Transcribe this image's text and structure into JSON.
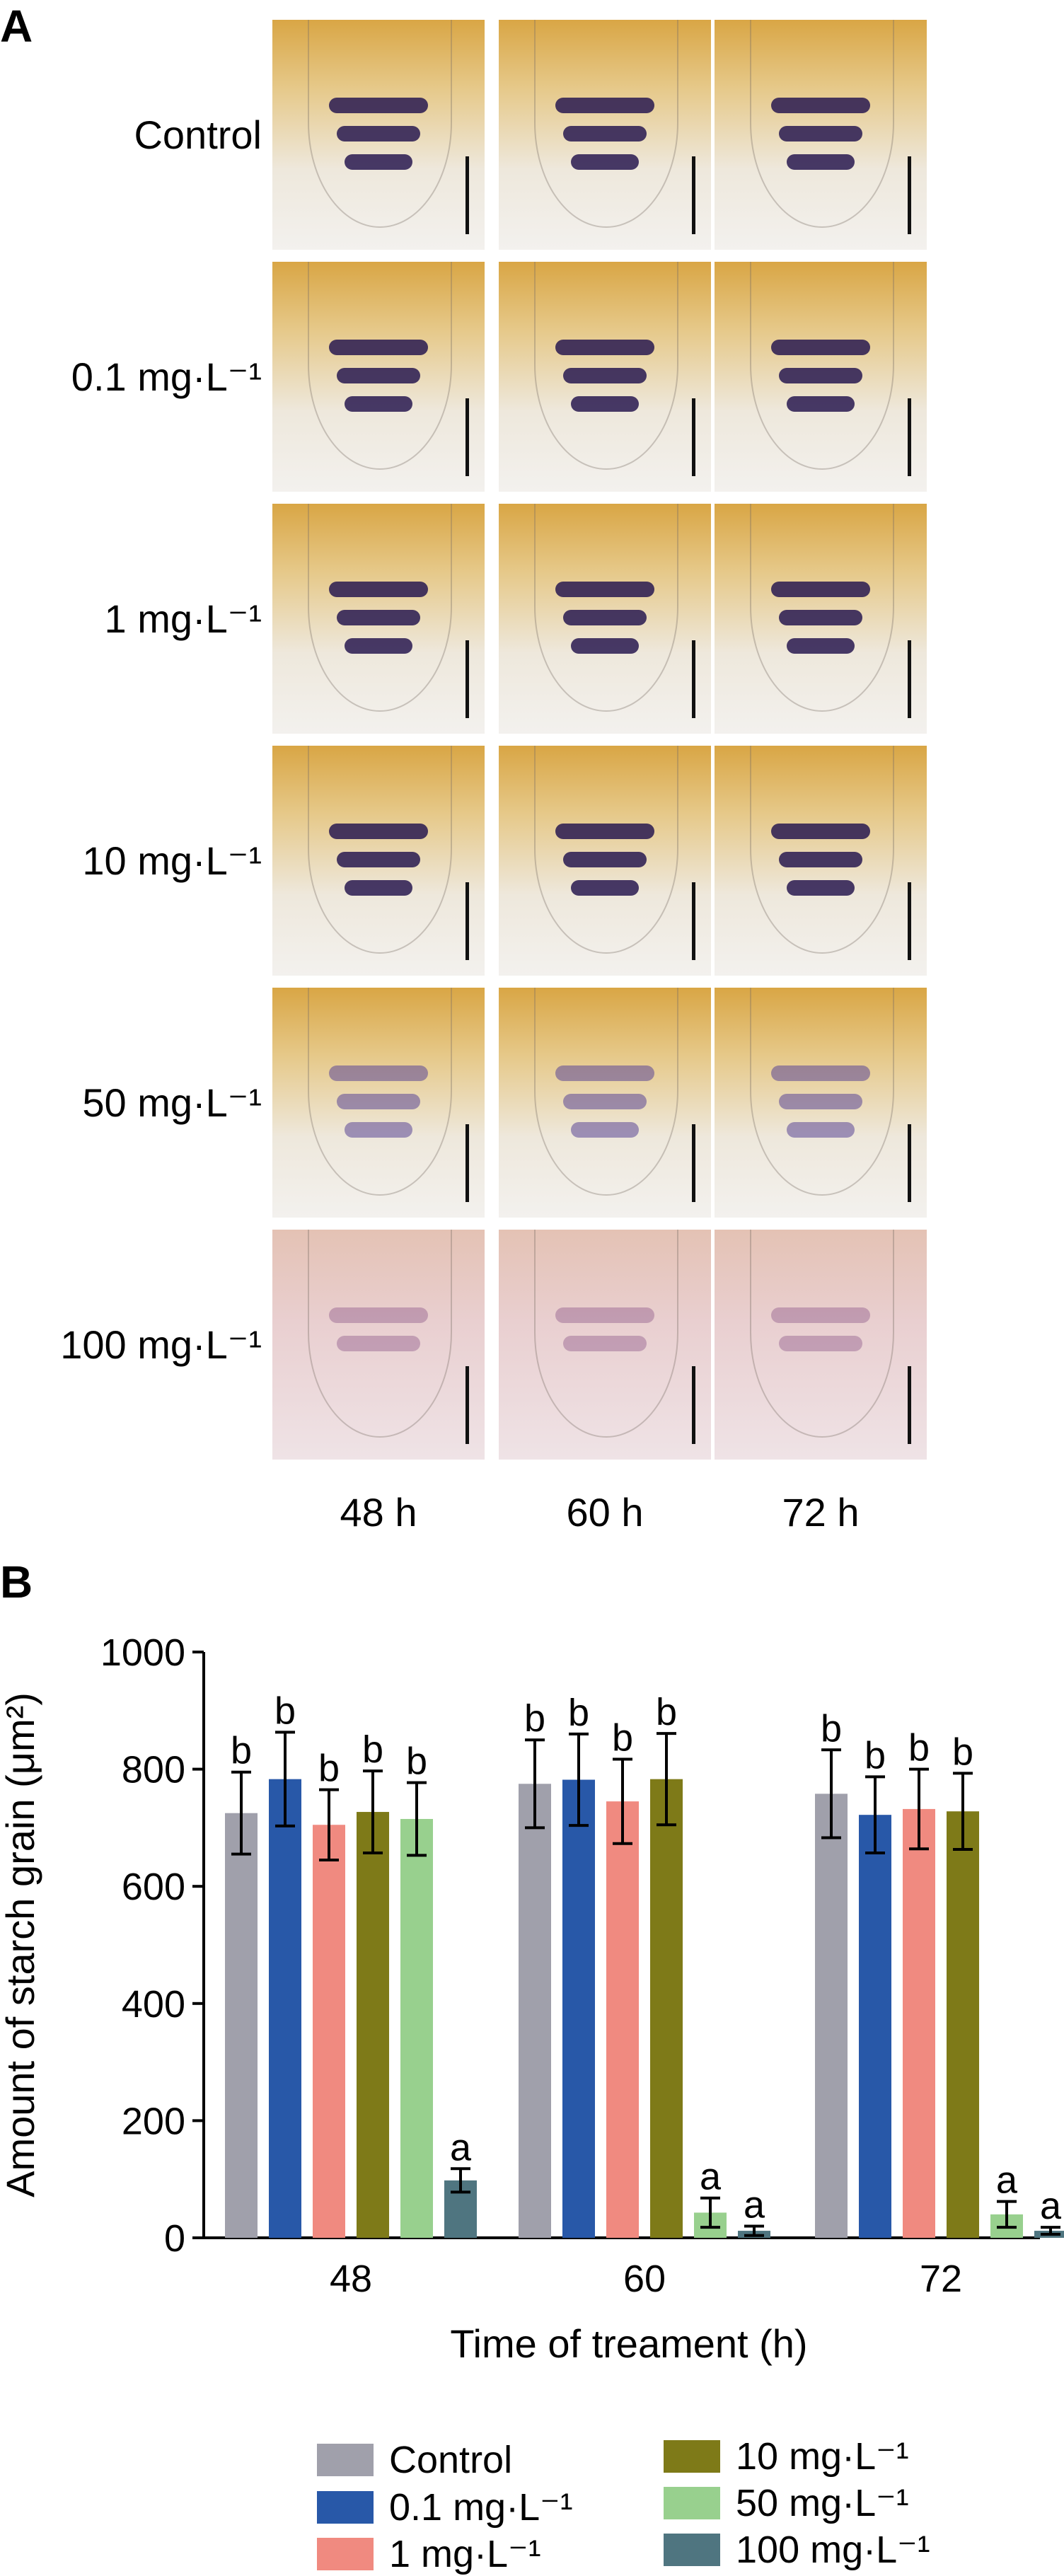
{
  "panel_a": {
    "letter": "A",
    "rows": [
      {
        "label": "Control",
        "tint": "yellow",
        "stain": "strong"
      },
      {
        "label": "0.1 mg·L⁻¹",
        "tint": "yellow",
        "stain": "strong"
      },
      {
        "label": "1 mg·L⁻¹",
        "tint": "yellow",
        "stain": "strong"
      },
      {
        "label": "10 mg·L⁻¹",
        "tint": "yellow",
        "stain": "strong"
      },
      {
        "label": "50 mg·L⁻¹",
        "tint": "yellow",
        "stain": "weak"
      },
      {
        "label": "100 mg·L⁻¹",
        "tint": "pink",
        "stain": "faint"
      }
    ],
    "columns": [
      "48 h",
      "60 h",
      "72 h"
    ]
  },
  "chart_data": {
    "panel_letter": "B",
    "type": "bar",
    "categories": [
      "48",
      "60",
      "72"
    ],
    "xlabel": "Time of treament (h)",
    "ylabel": "Amount of starch grain (μm²)",
    "ylim": [
      0,
      1000
    ],
    "yticks": [
      0,
      200,
      400,
      600,
      800,
      1000
    ],
    "legend_position": "bottom",
    "series": [
      {
        "name": "Control",
        "color": "#A0A0AB",
        "values": [
          725,
          775,
          758
        ],
        "errors": [
          70,
          75,
          75
        ],
        "letters": [
          "b",
          "b",
          "b"
        ]
      },
      {
        "name": "0.1 mg·L⁻¹",
        "color": "#2858A8",
        "values": [
          783,
          782,
          722
        ],
        "errors": [
          80,
          78,
          65
        ],
        "letters": [
          "b",
          "b",
          "b"
        ]
      },
      {
        "name": "1 mg·L⁻¹",
        "color": "#F08A80",
        "values": [
          705,
          745,
          732
        ],
        "errors": [
          60,
          72,
          68
        ],
        "letters": [
          "b",
          "b",
          "b"
        ]
      },
      {
        "name": "10 mg·L⁻¹",
        "color": "#7E7A18",
        "values": [
          727,
          783,
          728
        ],
        "errors": [
          70,
          78,
          65
        ],
        "letters": [
          "b",
          "b",
          "b"
        ]
      },
      {
        "name": "50 mg·L⁻¹",
        "color": "#98D08E",
        "values": [
          715,
          43,
          40
        ],
        "errors": [
          62,
          25,
          22
        ],
        "letters": [
          "b",
          "a",
          "a"
        ]
      },
      {
        "name": "100 mg·L⁻¹",
        "color": "#4F7580",
        "values": [
          98,
          12,
          12
        ],
        "errors": [
          20,
          8,
          6
        ],
        "letters": [
          "a",
          "a",
          "a"
        ]
      }
    ]
  }
}
